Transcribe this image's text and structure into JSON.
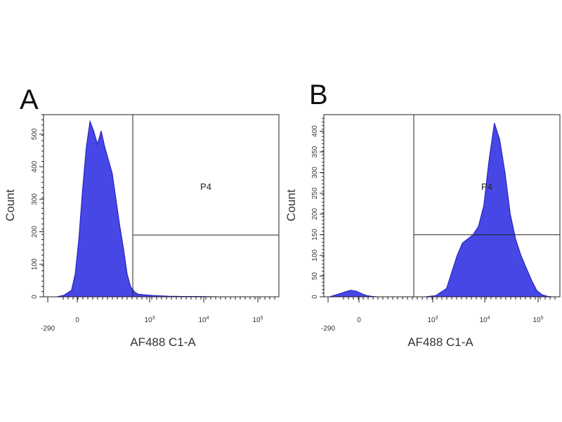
{
  "chart_data": [
    {
      "type": "area",
      "panel_label": "A",
      "xlabel": "AF488 C1-A",
      "ylabel": "Count",
      "x_tick_labels": [
        {
          "base": "-290",
          "sup": ""
        },
        {
          "base": "0",
          "sup": ""
        },
        {
          "base": "10",
          "sup": "3"
        },
        {
          "base": "10",
          "sup": "4"
        },
        {
          "base": "10",
          "sup": "5"
        }
      ],
      "y_tick_labels": [
        "0",
        "100",
        "200",
        "300",
        "400",
        "500"
      ],
      "ylim": [
        0,
        560
      ],
      "gate": {
        "name": "P4",
        "x_start_label": "10^3 (approx.)",
        "y_level": 190
      },
      "color": "#4747e6",
      "x": [
        0,
        0.1,
        0.2,
        0.3,
        0.35,
        0.4,
        0.45,
        0.5,
        0.55,
        0.6,
        0.65,
        0.7,
        0.75,
        0.8,
        0.85,
        0.9,
        0.95,
        1.0,
        1.05,
        1.1,
        1.15,
        1.2,
        1.3,
        1.4,
        1.5,
        1.6,
        1.8,
        2.0,
        2.3,
        2.6,
        3.0
      ],
      "values": [
        0,
        0,
        5,
        20,
        70,
        180,
        330,
        460,
        540,
        510,
        470,
        510,
        460,
        420,
        380,
        300,
        220,
        150,
        70,
        30,
        15,
        8,
        6,
        4,
        3,
        2,
        1,
        1,
        0,
        0,
        0
      ]
    },
    {
      "type": "area",
      "panel_label": "B",
      "xlabel": "AF488 C1-A",
      "ylabel": "Count",
      "x_tick_labels": [
        {
          "base": "-290",
          "sup": ""
        },
        {
          "base": "0",
          "sup": ""
        },
        {
          "base": "10",
          "sup": "3"
        },
        {
          "base": "10",
          "sup": "4"
        },
        {
          "base": "10",
          "sup": "5"
        }
      ],
      "y_tick_labels": [
        "0",
        "50",
        "100",
        "150",
        "200",
        "250",
        "300",
        "350",
        "400"
      ],
      "ylim": [
        0,
        440
      ],
      "gate": {
        "name": "P4",
        "x_start_label": "10^3 (approx.)",
        "y_level": 150
      },
      "color": "#4747e6",
      "x": [
        0,
        0.1,
        0.2,
        0.3,
        0.4,
        0.5,
        0.6,
        0.7,
        0.8,
        0.9,
        1.0,
        1.2,
        1.4,
        1.6,
        1.8,
        2.0,
        2.2,
        2.3,
        2.4,
        2.5,
        2.6,
        2.7,
        2.8,
        2.9,
        3.0,
        3.1,
        3.2,
        3.3,
        3.4,
        3.5,
        3.6,
        3.7,
        3.8,
        3.9,
        4.0,
        4.1,
        4.2
      ],
      "values": [
        0,
        4,
        8,
        12,
        16,
        14,
        8,
        3,
        1,
        0,
        0,
        0,
        0,
        0,
        0,
        3,
        20,
        60,
        100,
        130,
        140,
        150,
        170,
        220,
        330,
        420,
        380,
        300,
        200,
        140,
        100,
        70,
        40,
        15,
        5,
        1,
        0
      ]
    }
  ]
}
